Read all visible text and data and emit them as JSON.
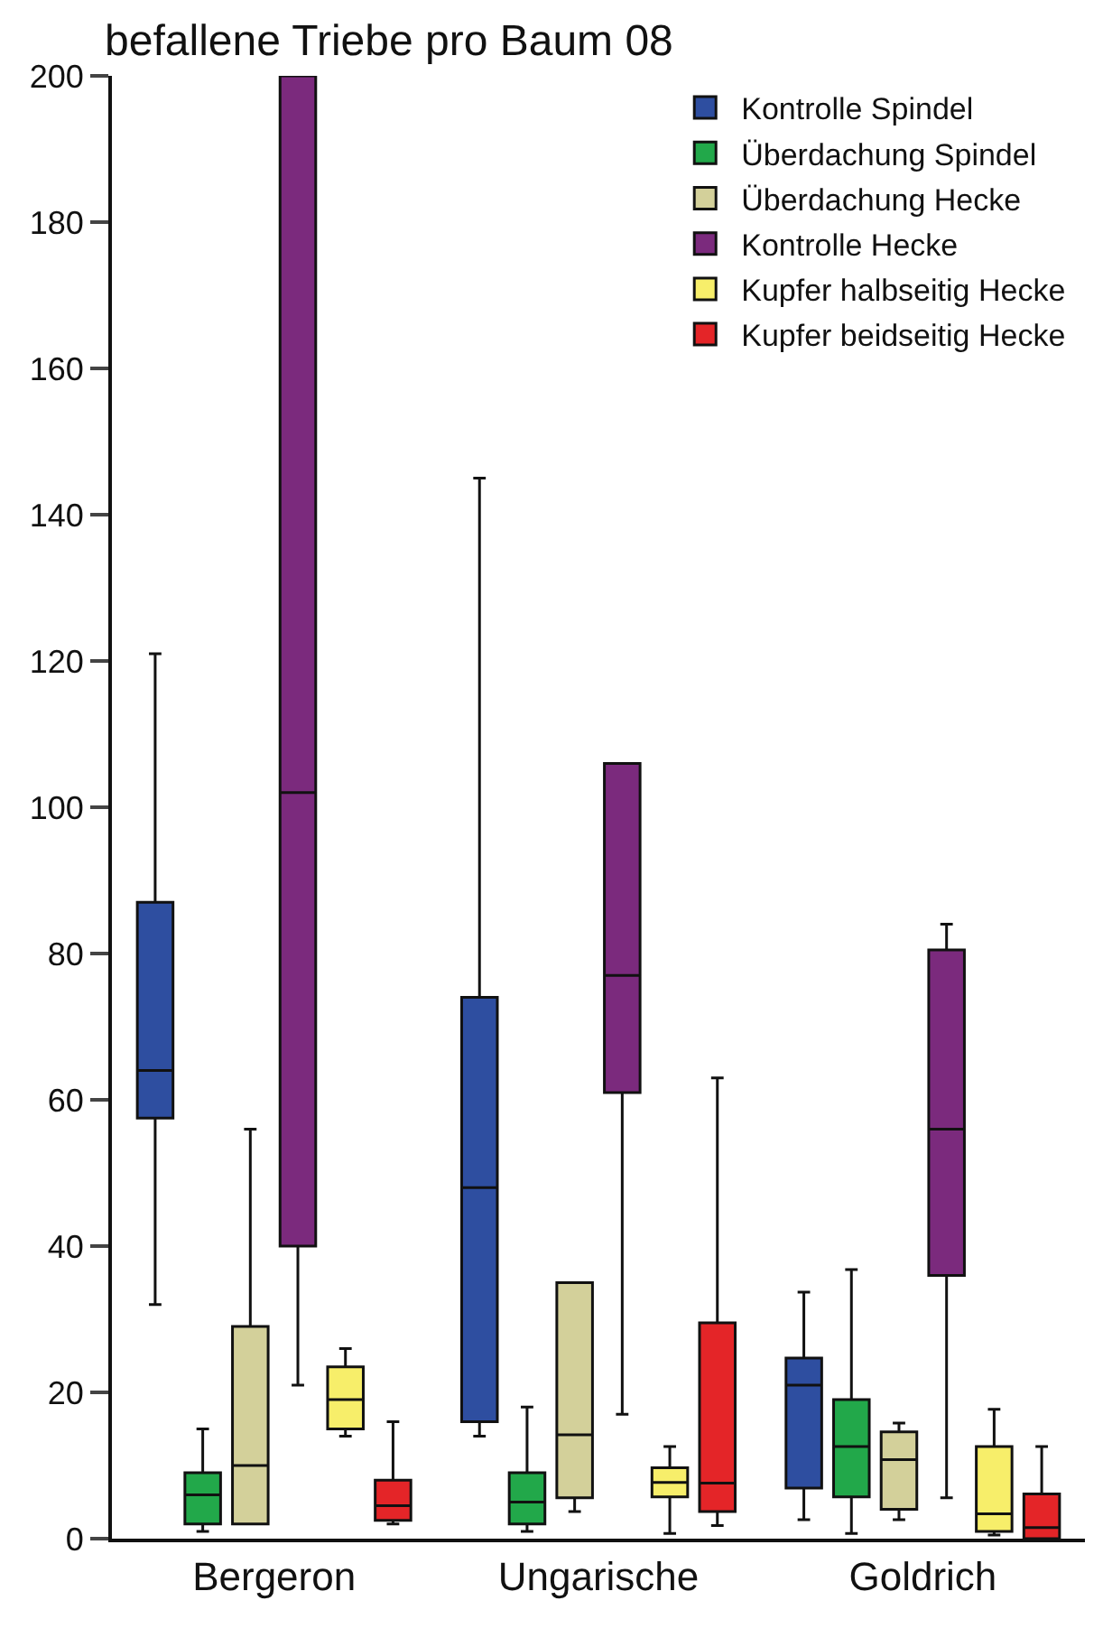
{
  "chart_data": {
    "type": "box",
    "title": "befallene Triebe pro Baum 08",
    "categories": [
      "Bergeron",
      "Ungarische",
      "Goldrich"
    ],
    "ylim": [
      0,
      200
    ],
    "yticks": [
      0,
      20,
      40,
      60,
      80,
      100,
      120,
      140,
      160,
      180,
      200
    ],
    "grid": false,
    "legend": "top right",
    "series": [
      {
        "name": "Kontrolle Spindel",
        "color": "#2e4ea0",
        "boxes": [
          {
            "low": 32,
            "q1": 57.5,
            "median": 64,
            "q3": 87,
            "high": 121
          },
          {
            "low": 14,
            "q1": 16,
            "median": 48,
            "q3": 74,
            "high": 145
          },
          {
            "low": 2.6,
            "q1": 6.9,
            "median": 21,
            "q3": 24.7,
            "high": 33.7
          }
        ]
      },
      {
        "name": "Überdachung Spindel",
        "color": "#22a84a",
        "boxes": [
          {
            "low": 1,
            "q1": 2,
            "median": 6,
            "q3": 9,
            "high": 15
          },
          {
            "low": 1,
            "q1": 2,
            "median": 5,
            "q3": 9,
            "high": 18
          },
          {
            "low": 0.7,
            "q1": 5.7,
            "median": 12.6,
            "q3": 19,
            "high": 36.8
          }
        ]
      },
      {
        "name": "Überdachung Hecke",
        "color": "#d3d09a",
        "boxes": [
          {
            "low": 2,
            "q1": 2,
            "median": 10,
            "q3": 29,
            "high": 56
          },
          {
            "low": 3.7,
            "q1": 5.6,
            "median": 14.2,
            "q3": 35,
            "high": 35
          },
          {
            "low": 2.6,
            "q1": 4,
            "median": 10.8,
            "q3": 14.6,
            "high": 15.8
          }
        ]
      },
      {
        "name": "Kontrolle Hecke",
        "color": "#7b2a7d",
        "boxes": [
          {
            "low": 21,
            "q1": 40,
            "median": 102,
            "q3": 200,
            "high": 200
          },
          {
            "low": 17,
            "q1": 61,
            "median": 77,
            "q3": 106,
            "high": 106
          },
          {
            "low": 5.6,
            "q1": 36,
            "median": 56,
            "q3": 80.5,
            "high": 84
          }
        ]
      },
      {
        "name": "Kupfer halbseitig Hecke",
        "color": "#f7ee6a",
        "boxes": [
          {
            "low": 14,
            "q1": 15,
            "median": 19,
            "q3": 23.5,
            "high": 26
          },
          {
            "low": 0.7,
            "q1": 5.7,
            "median": 7.7,
            "q3": 9.7,
            "high": 12.6
          },
          {
            "low": 0.5,
            "q1": 1,
            "median": 3.4,
            "q3": 12.6,
            "high": 17.7
          }
        ]
      },
      {
        "name": "Kupfer beidseitig Hecke",
        "color": "#e42528",
        "boxes": [
          {
            "low": 2,
            "q1": 2.5,
            "median": 4.5,
            "q3": 8,
            "high": 16
          },
          {
            "low": 1.8,
            "q1": 3.7,
            "median": 7.6,
            "q3": 29.5,
            "high": 63
          },
          {
            "low": 0,
            "q1": 0,
            "median": 1.5,
            "q3": 6.1,
            "high": 12.6
          }
        ]
      }
    ]
  }
}
